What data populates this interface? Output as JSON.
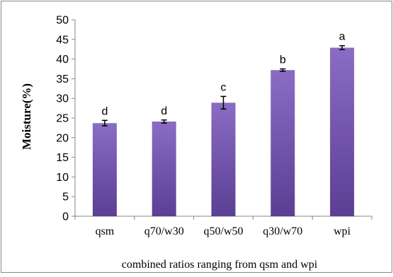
{
  "chart_data": {
    "type": "bar",
    "title": "",
    "xlabel": "combined ratios ranging from qsm and wpi",
    "ylabel": "Moisture(%)",
    "categories": [
      "qsm",
      "q70/w30",
      "q50/w50",
      "q30/w70",
      "wpi"
    ],
    "values": [
      23.7,
      24.1,
      28.9,
      37.2,
      42.9
    ],
    "error": [
      0.7,
      0.4,
      1.6,
      0.3,
      0.5
    ],
    "significance_labels": [
      "d",
      "d",
      "c",
      "b",
      "a"
    ],
    "ylim": [
      0,
      50
    ],
    "yticks": [
      "0",
      "5",
      "10",
      "15",
      "20",
      "25",
      "30",
      "35",
      "40",
      "45",
      "50"
    ],
    "grid": false,
    "legend": "none",
    "bar_color_top": "#8a6cc4",
    "bar_color_bottom": "#5b3f93"
  }
}
